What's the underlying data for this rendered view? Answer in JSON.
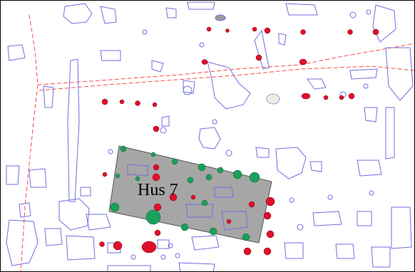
{
  "map": {
    "house": {
      "label": "Hus 7",
      "fill": "#a6a6a6"
    },
    "colors": {
      "outline": "#6f6fe0",
      "red_posthole": "#e0102a",
      "green_posthole": "#1aa05a",
      "boundary": "#ff4a4a",
      "stone_fill": "#f2ece0",
      "gray_feature": "#9a9a9a"
    }
  }
}
